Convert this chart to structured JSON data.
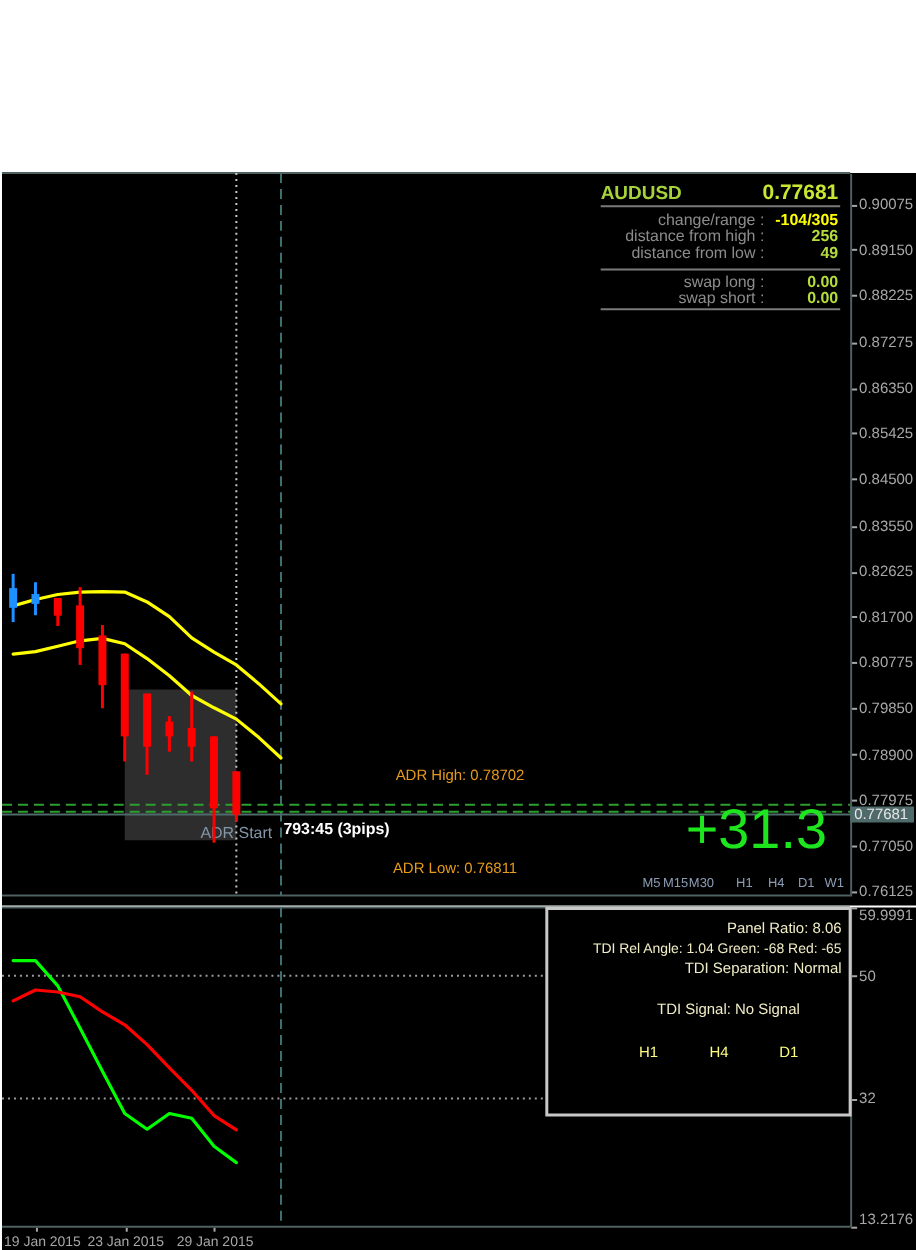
{
  "chart_data": [
    {
      "type": "candlestick",
      "categories": [
        null,
        null,
        null,
        null,
        null,
        null,
        null,
        null,
        null,
        null,
        null,
        null,
        null,
        null,
        null,
        null,
        null,
        null,
        null,
        null,
        null,
        null,
        null,
        null,
        null,
        null,
        null,
        null,
        null,
        null,
        null,
        null,
        null,
        null,
        null,
        null,
        null,
        null
      ],
      "ohlc": [
        [
          0.8188,
          0.8257,
          0.8159,
          0.8228
        ],
        [
          0.8196,
          0.824,
          0.8173,
          0.8216
        ],
        [
          0.8208,
          0.8208,
          0.8151,
          0.8172
        ],
        [
          0.8193,
          0.823,
          0.8072,
          0.8106
        ],
        [
          0.8132,
          0.8153,
          0.7984,
          0.8031
        ],
        [
          0.8095,
          0.8095,
          0.7876,
          0.7927
        ],
        [
          0.8014,
          0.8014,
          0.7849,
          0.7906
        ],
        [
          0.7957,
          0.7968,
          0.7896,
          0.7927
        ],
        [
          0.7944,
          0.8018,
          0.7876,
          0.7906
        ],
        [
          0.7927,
          0.7927,
          0.7711,
          0.7781
        ],
        [
          0.7856,
          0.7856,
          0.7754,
          0.7768
        ],
        null,
        null,
        null,
        null,
        null,
        null,
        null,
        null,
        null,
        null,
        null,
        null,
        null,
        null,
        null,
        null,
        null,
        null,
        null,
        null,
        null,
        null,
        null,
        null,
        null,
        null,
        null
      ],
      "colors": [
        "#1e90ff",
        "#1e90ff",
        "#ff0000",
        "#ff0000",
        "#ff0000",
        "#ff0000",
        "#ff0000",
        "#ff0000",
        "#ff0000",
        "#ff0000",
        "#ff0000",
        null,
        null,
        null,
        null,
        null,
        null,
        null,
        null,
        null,
        null,
        null,
        null,
        null,
        null,
        null,
        null,
        null,
        null,
        null,
        null,
        null,
        null,
        null,
        null,
        null,
        null,
        null
      ],
      "series": [
        {
          "type": "line",
          "values": [
            0.8192,
            0.8205,
            0.8215,
            0.822,
            0.8221,
            0.822,
            0.82,
            0.817,
            0.8127,
            0.8098,
            0.8072,
            0.8034,
            0.7993,
            null,
            null,
            null,
            null,
            null,
            null,
            null,
            null,
            null,
            null,
            null,
            null,
            null,
            null,
            null,
            null,
            null,
            null,
            null,
            null,
            null,
            null,
            null,
            null,
            null
          ],
          "color": "#ffff00"
        },
        {
          "type": "line",
          "values": [
            0.8094,
            0.8099,
            0.811,
            0.8121,
            0.8126,
            0.8115,
            0.8085,
            0.805,
            0.801,
            0.7985,
            0.7962,
            0.7925,
            0.7883,
            null,
            null,
            null,
            null,
            null,
            null,
            null,
            null,
            null,
            null,
            null,
            null,
            null,
            null,
            null,
            null,
            null,
            null,
            null,
            null,
            null,
            null,
            null,
            null,
            null
          ],
          "color": "#ffff00"
        }
      ],
      "ylim": [
        0.7604,
        0.9071
      ],
      "yticks": [
        0.90075,
        {
          "value": 0.8915,
          "label": "0.89150"
        },
        0.88225,
        0.87275,
        {
          "value": 0.8635,
          "label": "0.86350"
        },
        0.85425,
        {
          "value": 0.845,
          "label": "0.84500"
        },
        {
          "value": 0.8355,
          "label": "0.83550"
        },
        0.82625,
        {
          "value": 0.817,
          "label": "0.81700"
        },
        0.80775,
        {
          "value": 0.7985,
          "label": "0.79850"
        },
        {
          "value": 0.789,
          "label": "0.78900"
        },
        0.77975,
        {
          "value": 0.7705,
          "label": "0.77050"
        },
        0.76125
      ],
      "tick_labels": "y",
      "bands": [
        {
          "axis": "y",
          "from": 0.7716,
          "to": 0.8022,
          "label": "ADR Start",
          "color": "#2d2d2d"
        }
      ],
      "ref_lines": [
        {
          "axis": "y",
          "value": 0.7788,
          "color": "#2e9e2e",
          "line_style": "dashed"
        },
        {
          "axis": "y",
          "value": 0.7774,
          "color": "#2e9e2e",
          "line_style": "dashed"
        },
        {
          "axis": "y",
          "value": 0.77681,
          "label": "0.77681",
          "color": "#4f6a6a"
        }
      ],
      "annotations": [
        "AUDUSD",
        "0.77681",
        "change/range :",
        "-104/305",
        "distance from high :",
        "256",
        "distance from low :",
        "49",
        "swap long :",
        "0.00",
        "swap short :",
        "0.00",
        "ADR High: 0.78702",
        "ADR Low: 0.76811",
        "793:45 (3pips)",
        "+31.3",
        "M5",
        "M15",
        "M30",
        "H1",
        "H4",
        "D1",
        "W1"
      ]
    },
    {
      "type": "line",
      "categories": [
        null,
        "19 Jan 2015",
        null,
        null,
        null,
        "23 Jan 2015",
        null,
        null,
        null,
        "29 Jan 2015",
        null,
        null,
        null,
        null,
        null,
        null,
        null,
        null,
        null,
        null,
        null,
        null,
        null,
        null,
        null,
        null,
        null,
        null,
        null,
        null,
        null,
        null,
        null,
        null,
        null,
        null,
        null,
        null
      ],
      "series": [
        {
          "color": "#00ff00",
          "values": [
            52.2,
            52.2,
            48.5,
            42.3,
            36.0,
            29.8,
            27.5,
            29.8,
            29.1,
            25.0,
            22.6,
            null,
            null,
            null,
            null,
            null,
            null,
            null,
            null,
            null,
            null,
            null,
            null,
            null,
            null,
            null,
            null,
            null,
            null,
            null,
            null,
            null,
            null,
            null,
            null,
            null,
            null,
            null
          ]
        },
        {
          "color": "#ff0000",
          "values": [
            46.3,
            47.9,
            47.6,
            46.9,
            44.7,
            42.8,
            39.9,
            36.5,
            33.2,
            29.5,
            27.4,
            null,
            null,
            null,
            null,
            null,
            null,
            null,
            null,
            null,
            null,
            null,
            null,
            null,
            null,
            null,
            null,
            null,
            null,
            null,
            null,
            null,
            null,
            null,
            null,
            null,
            null,
            null
          ]
        }
      ],
      "ylim": [
        13.2176,
        59.9991
      ],
      "yticks": [
        59.9991,
        50,
        32,
        13.2176
      ],
      "ref_lines": [
        {
          "axis": "y",
          "value": 50,
          "color": "#9a9a9a",
          "line_style": "dotted"
        },
        {
          "axis": "y",
          "value": 32,
          "color": "#9a9a9a",
          "line_style": "dotted"
        }
      ],
      "annotations": [
        "Panel Ratio: 8.06",
        "TDI Rel Angle: 1.04 Green: -68 Red: -65",
        "TDI Separation: Normal",
        "TDI Signal: No Signal",
        "H1",
        "H4",
        "D1"
      ]
    }
  ]
}
